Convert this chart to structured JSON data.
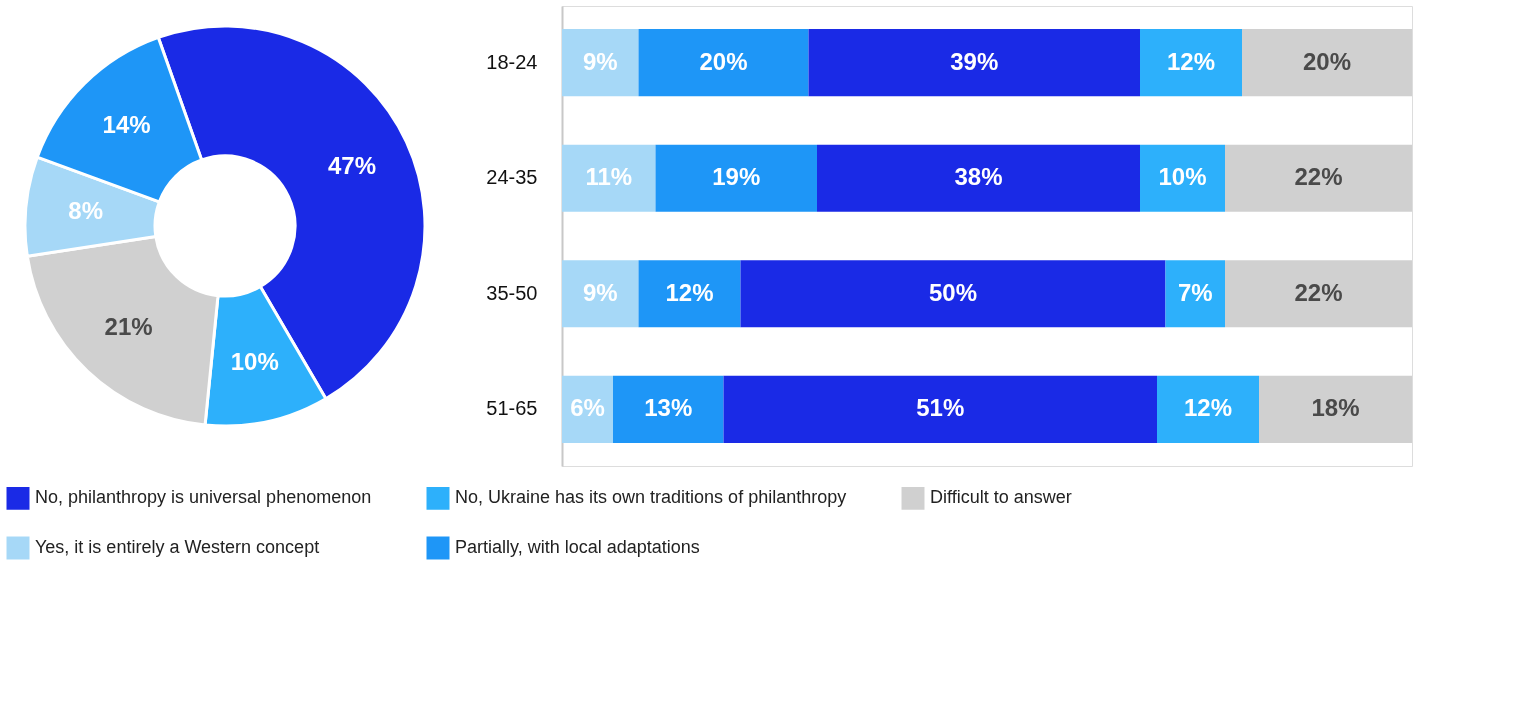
{
  "chart_data": [
    {
      "type": "donut",
      "categories": [
        "No, philanthropy is universal phenomenon",
        "No, Ukraine has its own traditions of philanthropy",
        "Difficult to answer",
        "Yes, it is entirely a Western concept",
        "Partially, with local adaptations"
      ],
      "values": [
        47,
        10,
        21,
        8,
        14
      ],
      "colors": [
        "#1a2ae6",
        "#2db0fb",
        "#d0d0d0",
        "#a6d8f7",
        "#1e96f7"
      ],
      "value_labels": [
        "47%",
        "10%",
        "21%",
        "8%",
        "14%"
      ],
      "legend": "bottom"
    },
    {
      "type": "bar",
      "orientation": "horizontal",
      "stacked": true,
      "categories": [
        "18-24",
        "24-35",
        "35-50",
        "51-65"
      ],
      "xlim": [
        0,
        100
      ],
      "legend": "bottom",
      "tick_labels": "y",
      "series": [
        {
          "name": "Yes, it is entirely a Western concept",
          "color": "#a6d8f7",
          "values": [
            9,
            11,
            9,
            6
          ],
          "value_labels": [
            "9%",
            "11%",
            "9%",
            "6%"
          ]
        },
        {
          "name": "Partially, with local adaptations",
          "color": "#1e96f7",
          "values": [
            20,
            19,
            12,
            13
          ],
          "value_labels": [
            "20%",
            "19%",
            "12%",
            "13%"
          ]
        },
        {
          "name": "No, philanthropy is universal phenomenon",
          "color": "#1a2ae6",
          "values": [
            39,
            38,
            50,
            51
          ],
          "value_labels": [
            "39%",
            "38%",
            "50%",
            "51%"
          ]
        },
        {
          "name": "No, Ukraine has its own traditions of philanthropy",
          "color": "#2db0fb",
          "values": [
            12,
            10,
            7,
            12
          ],
          "value_labels": [
            "12%",
            "10%",
            "7%",
            "12%"
          ]
        },
        {
          "name": "Difficult to answer",
          "color": "#d0d0d0",
          "values": [
            20,
            22,
            22,
            18
          ],
          "value_labels": [
            "20%",
            "22%",
            "22%",
            "18%"
          ]
        }
      ]
    }
  ]
}
